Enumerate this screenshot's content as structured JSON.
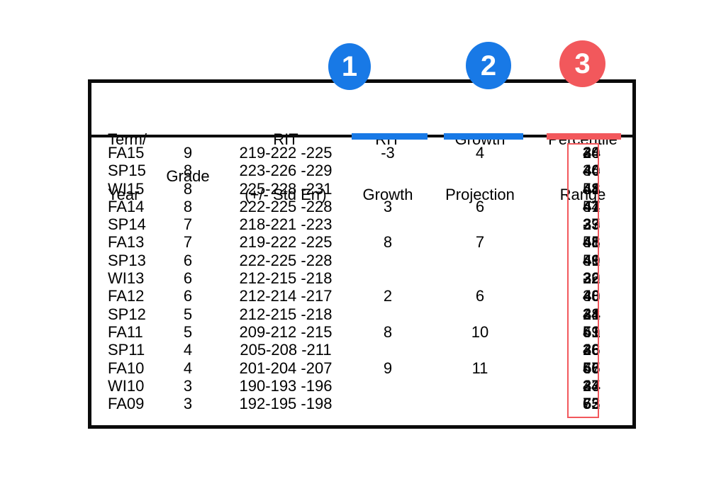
{
  "colors": {
    "blue": "#1879e6",
    "red": "#f2585c",
    "table_border": "#0b0b0b"
  },
  "annotations": {
    "markers": [
      {
        "number": "1",
        "target": "rit-growth-column",
        "color": "#1879e6"
      },
      {
        "number": "2",
        "target": "growth-projection-column",
        "color": "#1879e6"
      },
      {
        "number": "3",
        "target": "percentile-range-column",
        "color": "#f2585c"
      }
    ],
    "underlines": [
      {
        "column": "rit-growth",
        "color": "blue"
      },
      {
        "column": "growth-projection",
        "color": "blue"
      },
      {
        "column": "percentile-range",
        "color": "red"
      }
    ],
    "highlight_rectangle": {
      "column": "percentile-midpoint",
      "color": "red"
    }
  },
  "table": {
    "headers": {
      "term": {
        "line1": "Term/",
        "line2": "Year"
      },
      "grade": {
        "line1": "",
        "line2": "Grade"
      },
      "rit": {
        "line1": "RIT",
        "line2": "(+/- Std Err)"
      },
      "rit_growth": {
        "line1": "RIT",
        "line2": "Growth"
      },
      "growth_projection": {
        "line1": "Growth",
        "line2": "Projection"
      },
      "percentile": {
        "line1": "Percentile",
        "line2": "Range"
      }
    },
    "rows": [
      {
        "term": "FA15",
        "grade": "9",
        "rit": "219-222 -225",
        "rit_growth": "-3",
        "growth_projection": "4",
        "pct_low": "28",
        "pct_mid": "34",
        "pct_high": "40"
      },
      {
        "term": "SP15",
        "grade": "8",
        "rit": "223-226 -229",
        "rit_growth": "",
        "growth_projection": "",
        "pct_low": "34",
        "pct_mid": "40",
        "pct_high": "46"
      },
      {
        "term": "WI15",
        "grade": "8",
        "rit": "225-228 -231",
        "rit_growth": "",
        "growth_projection": "",
        "pct_low": "41",
        "pct_mid": "48",
        "pct_high": "54"
      },
      {
        "term": "FA14",
        "grade": "8",
        "rit": "222-225 -228",
        "rit_growth": "3",
        "growth_projection": "6",
        "pct_low": "41",
        "pct_mid": "47",
        "pct_high": "54"
      },
      {
        "term": "SP14",
        "grade": "7",
        "rit": "218-221 -223",
        "rit_growth": "",
        "growth_projection": "",
        "pct_low": "27",
        "pct_mid": "33",
        "pct_high": "39"
      },
      {
        "term": "FA13",
        "grade": "7",
        "rit": "219-222 -225",
        "rit_growth": "8",
        "growth_projection": "7",
        "pct_low": "41",
        "pct_mid": "48",
        "pct_high": "55"
      },
      {
        "term": "SP13",
        "grade": "6",
        "rit": "222-225 -228",
        "rit_growth": "",
        "growth_projection": "",
        "pct_low": "41",
        "pct_mid": "49",
        "pct_high": "56"
      },
      {
        "term": "WI13",
        "grade": "6",
        "rit": "212-215 -218",
        "rit_growth": "",
        "growth_projection": "",
        "pct_low": "26",
        "pct_mid": "32",
        "pct_high": "39"
      },
      {
        "term": "FA12",
        "grade": "6",
        "rit": "212-214 -217",
        "rit_growth": "2",
        "growth_projection": "6",
        "pct_low": "33",
        "pct_mid": "40",
        "pct_high": "48"
      },
      {
        "term": "SP12",
        "grade": "5",
        "rit": "212-215 -218",
        "rit_growth": "",
        "growth_projection": "",
        "pct_low": "28",
        "pct_mid": "34",
        "pct_high": "41"
      },
      {
        "term": "FA11",
        "grade": "5",
        "rit": "209-212 -215",
        "rit_growth": "8",
        "growth_projection": "10",
        "pct_low": "43",
        "pct_mid": "51",
        "pct_high": "59"
      },
      {
        "term": "SP11",
        "grade": "4",
        "rit": "205-208 -211",
        "rit_growth": "",
        "growth_projection": "",
        "pct_low": "28",
        "pct_mid": "36",
        "pct_high": "43"
      },
      {
        "term": "FA10",
        "grade": "4",
        "rit": "201-204 -207",
        "rit_growth": "9",
        "growth_projection": "11",
        "pct_low": "47",
        "pct_mid": "56",
        "pct_high": "65"
      },
      {
        "term": "WI10",
        "grade": "3",
        "rit": "190-193 -196",
        "rit_growth": "",
        "growth_projection": "",
        "pct_low": "27",
        "pct_mid": "34",
        "pct_high": "43"
      },
      {
        "term": "FA09",
        "grade": "3",
        "rit": "192-195 -198",
        "rit_growth": "",
        "growth_projection": "",
        "pct_low": "55",
        "pct_mid": "63",
        "pct_high": "72"
      }
    ]
  }
}
